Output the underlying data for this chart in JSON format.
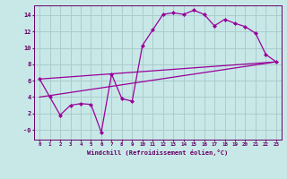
{
  "bg_color": "#c8e8e8",
  "line_color": "#990099",
  "grid_color": "#aacccc",
  "xlabel": "Windchill (Refroidissement éolien,°C)",
  "xlabel_color": "#660066",
  "tick_color": "#660066",
  "xlim": [
    -0.5,
    23.5
  ],
  "ylim": [
    -1.2,
    15.2
  ],
  "yticks": [
    0,
    2,
    4,
    6,
    8,
    10,
    12,
    14
  ],
  "ytick_labels": [
    "-0",
    "2",
    "4",
    "6",
    "8",
    "10",
    "12",
    "14"
  ],
  "xticks": [
    0,
    1,
    2,
    3,
    4,
    5,
    6,
    7,
    8,
    9,
    10,
    11,
    12,
    13,
    14,
    15,
    16,
    17,
    18,
    19,
    20,
    21,
    22,
    23
  ],
  "line1_x": [
    0,
    1,
    2,
    3,
    4,
    5,
    6,
    7,
    8,
    9,
    10,
    11,
    12,
    13,
    14,
    15,
    16,
    17,
    18,
    19,
    20,
    21,
    22,
    23
  ],
  "line1_y": [
    6.2,
    4.0,
    1.8,
    3.0,
    3.2,
    3.1,
    -0.3,
    6.8,
    3.8,
    3.5,
    10.3,
    12.2,
    14.1,
    14.3,
    14.1,
    14.6,
    14.1,
    12.7,
    13.5,
    13.0,
    12.6,
    11.8,
    9.2,
    8.3
  ],
  "line2_x": [
    0,
    23
  ],
  "line2_y": [
    4.0,
    8.3
  ],
  "line3_x": [
    0,
    23
  ],
  "line3_y": [
    6.2,
    8.3
  ]
}
